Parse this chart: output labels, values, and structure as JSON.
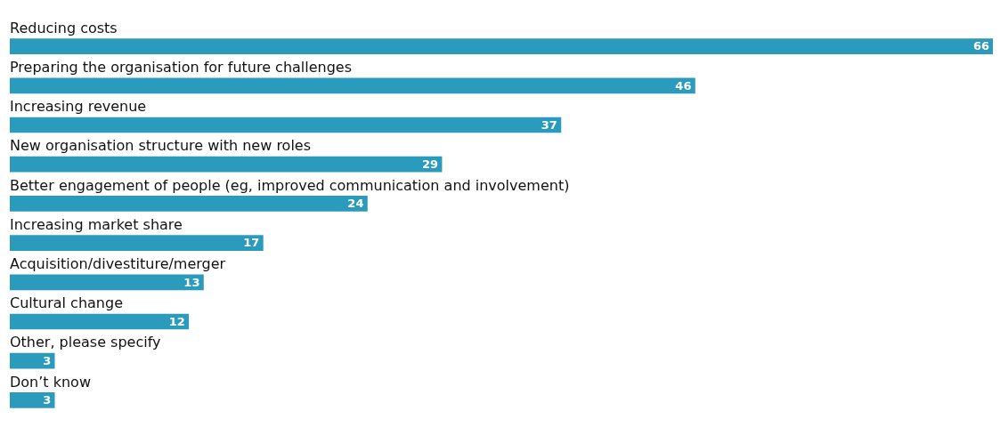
{
  "chart_data": {
    "type": "bar",
    "orientation": "horizontal",
    "categories": [
      "Reducing costs",
      "Preparing the organisation for future challenges",
      "Increasing revenue",
      "New organisation structure with new roles",
      "Better engagement of people (eg, improved communication and involvement)",
      "Increasing market share",
      "Acquisition/divestiture/merger",
      "Cultural change",
      "Other, please specify",
      "Don’t know"
    ],
    "values": [
      66,
      46,
      37,
      29,
      24,
      17,
      13,
      12,
      3,
      3
    ],
    "color": "#2b9bbd",
    "data_labels": true
  }
}
